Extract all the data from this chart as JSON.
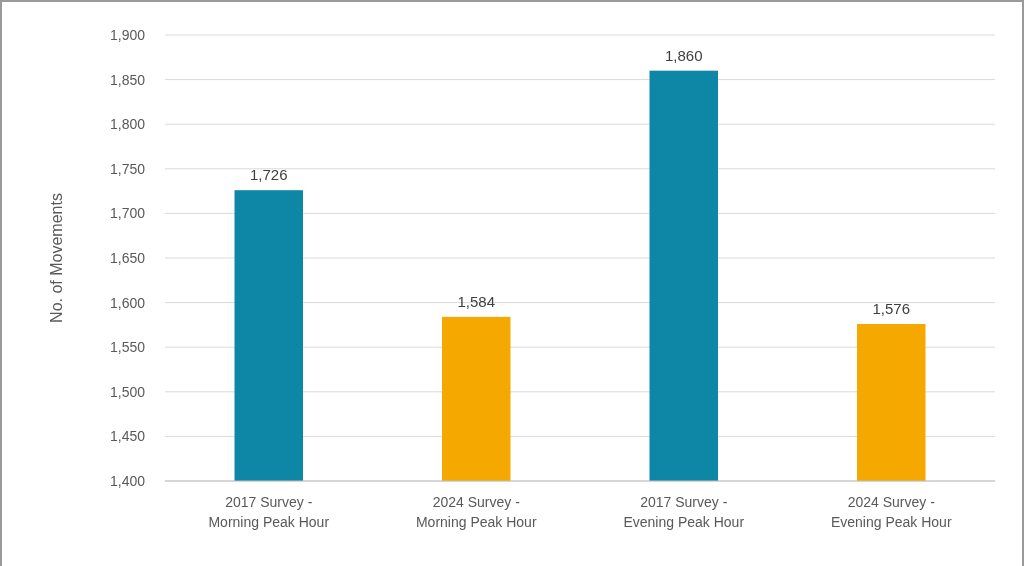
{
  "chart_data": {
    "type": "bar",
    "ylabel": "No. of Movements",
    "categories": [
      "2017 Survey - Morning Peak Hour",
      "2024 Survey - Morning Peak Hour",
      "2017 Survey - Evening Peak Hour",
      "2024 Survey - Evening Peak Hour"
    ],
    "values": [
      1726,
      1584,
      1860,
      1576
    ],
    "colors": [
      "#0e86a5",
      "#f4a800",
      "#0e86a5",
      "#f4a800"
    ],
    "ylim": [
      1400,
      1900
    ],
    "yticks": [
      {
        "value": 1400,
        "label": "1,400"
      },
      {
        "value": 1450,
        "label": "1,450"
      },
      {
        "value": 1500,
        "label": "1,500"
      },
      {
        "value": 1550,
        "label": "1,550"
      },
      {
        "value": 1600,
        "label": "1,600"
      },
      {
        "value": 1650,
        "label": "1,650"
      },
      {
        "value": 1700,
        "label": "1,700"
      },
      {
        "value": 1750,
        "label": "1,750"
      },
      {
        "value": 1800,
        "label": "1,800"
      },
      {
        "value": 1850,
        "label": "1,850"
      },
      {
        "value": 1900,
        "label": "1,900"
      }
    ],
    "grid": "y",
    "value_labels": [
      "1,726",
      "1,584",
      "1,860",
      "1,576"
    ]
  }
}
